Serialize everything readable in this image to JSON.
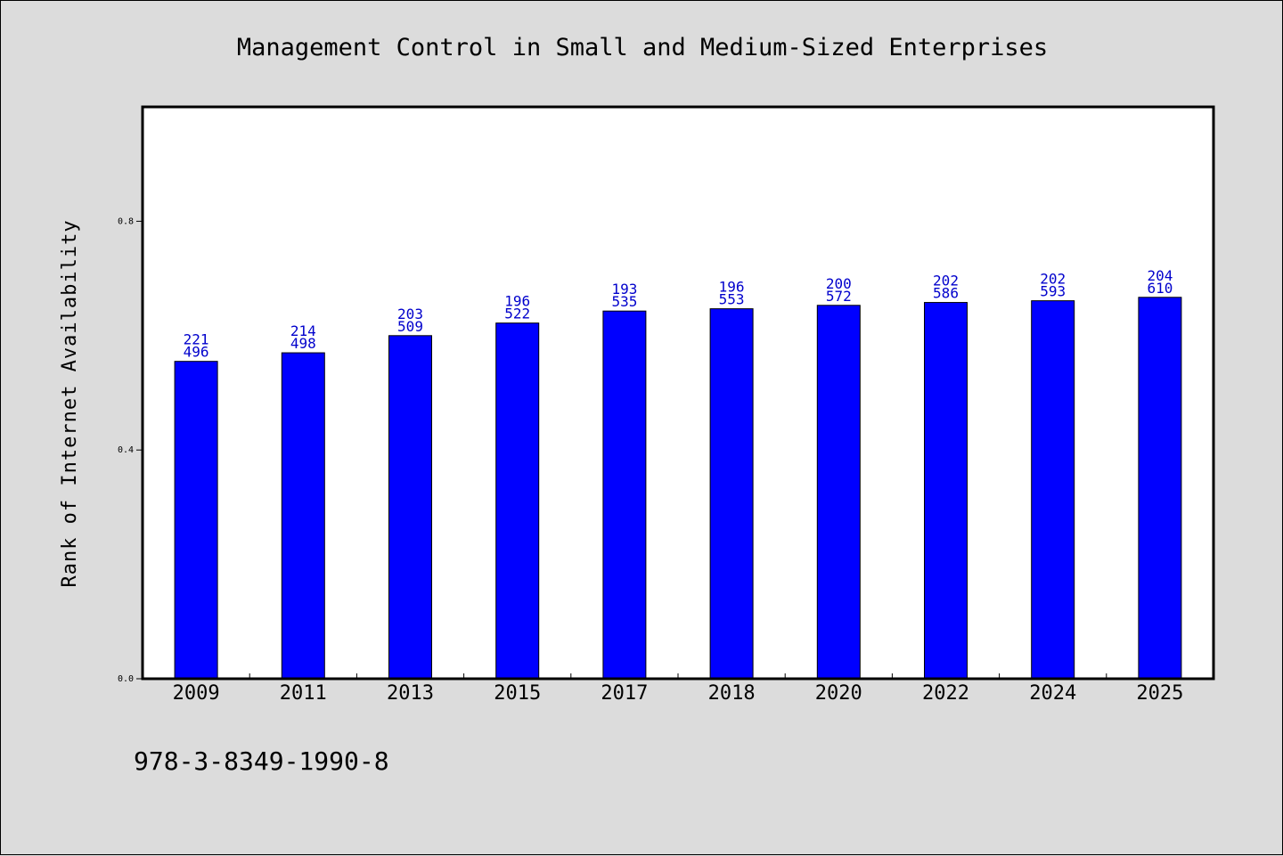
{
  "chart_data": {
    "type": "bar",
    "title": "Management Control in Small and Medium-Sized Enterprises",
    "xlabel": "",
    "ylabel": "Rank of Internet Availability",
    "categories": [
      "2009",
      "2011",
      "2013",
      "2015",
      "2017",
      "2018",
      "2020",
      "2022",
      "2024",
      "2025"
    ],
    "values": [
      0.555,
      0.57,
      0.6,
      0.622,
      0.643,
      0.647,
      0.653,
      0.658,
      0.661,
      0.667
    ],
    "data_labels_top": [
      "221",
      "214",
      "203",
      "196",
      "193",
      "196",
      "200",
      "202",
      "202",
      "204"
    ],
    "data_labels_bottom": [
      "496",
      "498",
      "509",
      "522",
      "535",
      "553",
      "572",
      "586",
      "593",
      "610"
    ],
    "yticks": [
      "0.0",
      "0.4",
      "0.8"
    ],
    "ylim": [
      0,
      1.0
    ],
    "grid": false,
    "bar_color": "#0000ff",
    "label_color": "#0000cc"
  },
  "footnote": "978-3-8349-1990-8"
}
